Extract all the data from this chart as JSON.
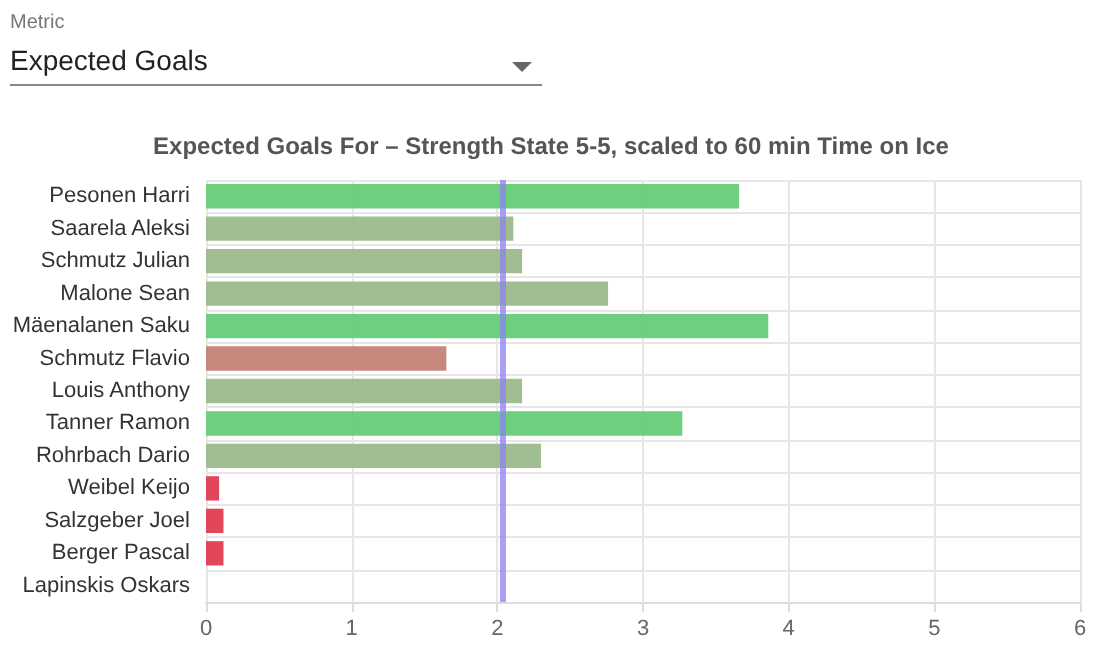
{
  "chart_data": {
    "type": "bar",
    "orientation": "horizontal",
    "title": "Expected Goals For – Strength State 5-5, scaled to 60 min Time on Ice",
    "categories": [
      "Pesonen Harri",
      "Saarela Aleksi",
      "Schmutz Julian",
      "Malone Sean",
      "Mäenalanen Saku",
      "Schmutz Flavio",
      "Louis Anthony",
      "Tanner Ramon",
      "Rohrbach Dario",
      "Weibel Keijo",
      "Salzgeber Joel",
      "Berger Pascal",
      "Lapinskis Oskars"
    ],
    "values": [
      3.66,
      2.11,
      2.17,
      2.76,
      3.86,
      1.65,
      2.17,
      3.27,
      2.3,
      0.09,
      0.12,
      0.12,
      0
    ],
    "colors": [
      "#66cc77",
      "#9bbb8a",
      "#9bbb8a",
      "#9bbb8a",
      "#66cc77",
      "#c48276",
      "#9bbb8a",
      "#66cc77",
      "#9bbb8a",
      "#e03c52",
      "#e03c52",
      "#e03c52",
      "#e03c52"
    ],
    "xlim": [
      0,
      6
    ],
    "xticks": [
      0,
      1,
      2,
      3,
      4,
      5,
      6
    ],
    "ref_lines": [
      {
        "axis": "x",
        "value": 2.03,
        "color": "#8c80f2"
      }
    ],
    "annotations": [
      "Metric",
      "Expected Goals"
    ],
    "grid": true
  }
}
